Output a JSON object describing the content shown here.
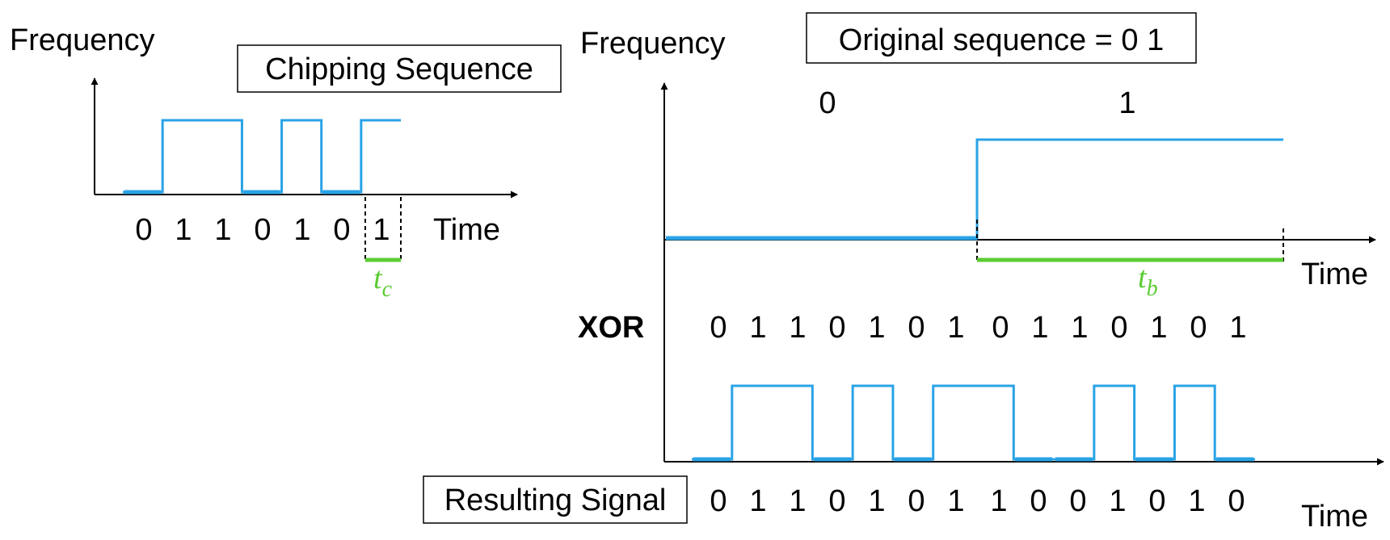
{
  "colors": {
    "signal": "#29a3e6",
    "duration": "#5ccc33",
    "axis": "#000000",
    "background": "#ffffff"
  },
  "labels": {
    "frequency": "Frequency",
    "time": "Time",
    "xor": "XOR",
    "chipping_sequence": "Chipping Sequence",
    "original_sequence": "Original sequence = 0 1",
    "resulting_signal": "Resulting Signal"
  },
  "chipping": {
    "bits": [
      0,
      1,
      1,
      0,
      1,
      0,
      1
    ],
    "chip_symbol": "t",
    "chip_subscript": "c"
  },
  "original": {
    "bits": [
      0,
      1
    ],
    "bit_symbol": "t",
    "bit_subscript": "b"
  },
  "xor_sequence": [
    0,
    1,
    1,
    0,
    1,
    0,
    1,
    0,
    1,
    1,
    0,
    1,
    0,
    1
  ],
  "result_bits": [
    0,
    1,
    1,
    0,
    1,
    0,
    1,
    1,
    0,
    0,
    1,
    0,
    1,
    0
  ]
}
